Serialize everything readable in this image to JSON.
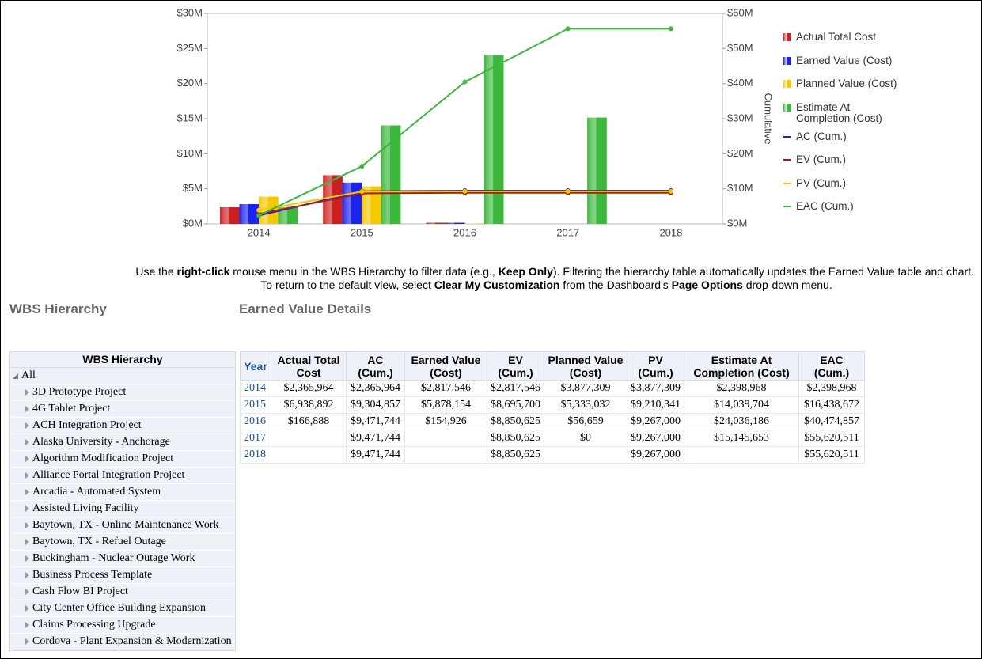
{
  "chart_data": {
    "type": "combo",
    "categories": [
      "2014",
      "2015",
      "2016",
      "2017",
      "2018"
    ],
    "ylim": [
      0,
      30
    ],
    "yticks": [
      {
        "value": 0,
        "label": "$0M"
      },
      {
        "value": 5,
        "label": "$5M"
      },
      {
        "value": 10,
        "label": "$10M"
      },
      {
        "value": 15,
        "label": "$15M"
      },
      {
        "value": 20,
        "label": "$20M"
      },
      {
        "value": 25,
        "label": "$25M"
      },
      {
        "value": 30,
        "label": "$30M"
      }
    ],
    "y2lim": [
      0,
      60
    ],
    "y2ticks": [
      {
        "value": 0,
        "label": "$0M"
      },
      {
        "value": 10,
        "label": "$10M"
      },
      {
        "value": 20,
        "label": "$20M"
      },
      {
        "value": 30,
        "label": "$30M"
      },
      {
        "value": 40,
        "label": "$40M"
      },
      {
        "value": 50,
        "label": "$50M"
      },
      {
        "value": 60,
        "label": "$60M"
      }
    ],
    "y2label": "Cumulative",
    "series": [
      {
        "name": "Actual Total Cost",
        "type": "bar",
        "color": "#cc2020",
        "values": [
          2.365964,
          6.938892,
          0.166888,
          null,
          null
        ]
      },
      {
        "name": "Earned Value (Cost)",
        "type": "bar",
        "color": "#1a22ee",
        "values": [
          2.817546,
          5.878154,
          0.154926,
          null,
          null
        ]
      },
      {
        "name": "Planned Value (Cost)",
        "type": "bar",
        "color": "#f5c800",
        "values": [
          3.877309,
          5.333032,
          0.056659,
          0,
          null
        ]
      },
      {
        "name": "Estimate At Completion (Cost)",
        "type": "bar",
        "color": "#3cb83c",
        "values": [
          2.398968,
          14.039704,
          24.036186,
          15.145653,
          null
        ]
      },
      {
        "name": "AC (Cum.)",
        "type": "line",
        "axis": "y2",
        "color": "#1a22ee",
        "values": [
          2.365964,
          9.304857,
          9.471744,
          9.471744,
          9.471744
        ]
      },
      {
        "name": "EV (Cum.)",
        "type": "line",
        "axis": "y2",
        "color": "#aa1818",
        "values": [
          2.817546,
          8.6957,
          8.850625,
          8.850625,
          8.850625
        ]
      },
      {
        "name": "PV (Cum.)",
        "type": "line",
        "axis": "y2",
        "color": "#f5c800",
        "values": [
          3.877309,
          9.210341,
          9.267,
          9.267,
          9.267
        ]
      },
      {
        "name": "EAC (Cum.)",
        "type": "line",
        "axis": "y2",
        "color": "#3cb83c",
        "values": [
          2.398968,
          16.438672,
          40.474857,
          55.620511,
          55.620511
        ]
      }
    ]
  },
  "instructions": [
    [
      {
        "text": "Use the ",
        "bold": false
      },
      {
        "text": "right-click",
        "bold": true
      },
      {
        "text": " mouse menu in the WBS Hierarchy to filter data (e.g., ",
        "bold": false
      },
      {
        "text": "Keep Only",
        "bold": true
      },
      {
        "text": "). Filtering the hierarchy table automatically updates the Earned Value table and chart.",
        "bold": false
      }
    ],
    [
      {
        "text": "To return to the default view, select ",
        "bold": false
      },
      {
        "text": "Clear My Customization",
        "bold": true
      },
      {
        "text": " from the Dashboard's ",
        "bold": false
      },
      {
        "text": "Page Options",
        "bold": true
      },
      {
        "text": " drop-down menu.",
        "bold": false
      }
    ]
  ],
  "wbs": {
    "title": "WBS Hierarchy",
    "header": "WBS Hierarchy",
    "root": "All",
    "items": [
      "3D Prototype Project",
      "4G Tablet Project",
      "ACH Integration Project",
      "Alaska University - Anchorage",
      "Algorithm Modification Project",
      "Alliance Portal Integration Project",
      "Arcadia - Automated System",
      "Assisted Living Facility",
      "Baytown, TX - Online Maintenance Work",
      "Baytown, TX - Refuel Outage",
      "Buckingham - Nuclear Outage Work",
      "Business Process Template",
      "Cash Flow BI Project",
      "City Center Office Building Expansion",
      "Claims Processing Upgrade",
      "Cordova - Plant Expansion & Modernization"
    ]
  },
  "details": {
    "title": "Earned Value Details",
    "columns": [
      "Year",
      "Actual Total Cost",
      "AC (Cum.)",
      "Earned Value (Cost)",
      "EV (Cum.)",
      "Planned Value (Cost)",
      "PV (Cum.)",
      "Estimate At Completion (Cost)",
      "EAC (Cum.)"
    ],
    "rows": [
      [
        "2014",
        "$2,365,964",
        "$2,365,964",
        "$2,817,546",
        "$2,817,546",
        "$3,877,309",
        "$3,877,309",
        "$2,398,968",
        "$2,398,968"
      ],
      [
        "2015",
        "$6,938,892",
        "$9,304,857",
        "$5,878,154",
        "$8,695,700",
        "$5,333,032",
        "$9,210,341",
        "$14,039,704",
        "$16,438,672"
      ],
      [
        "2016",
        "$166,888",
        "$9,471,744",
        "$154,926",
        "$8,850,625",
        "$56,659",
        "$9,267,000",
        "$24,036,186",
        "$40,474,857"
      ],
      [
        "2017",
        null,
        "$9,471,744",
        null,
        "$8,850,625",
        "$0",
        "$9,267,000",
        "$15,145,653",
        "$55,620,511"
      ],
      [
        "2018",
        null,
        "$9,471,744",
        null,
        "$8,850,625",
        null,
        "$9,267,000",
        null,
        "$55,620,511"
      ]
    ]
  }
}
